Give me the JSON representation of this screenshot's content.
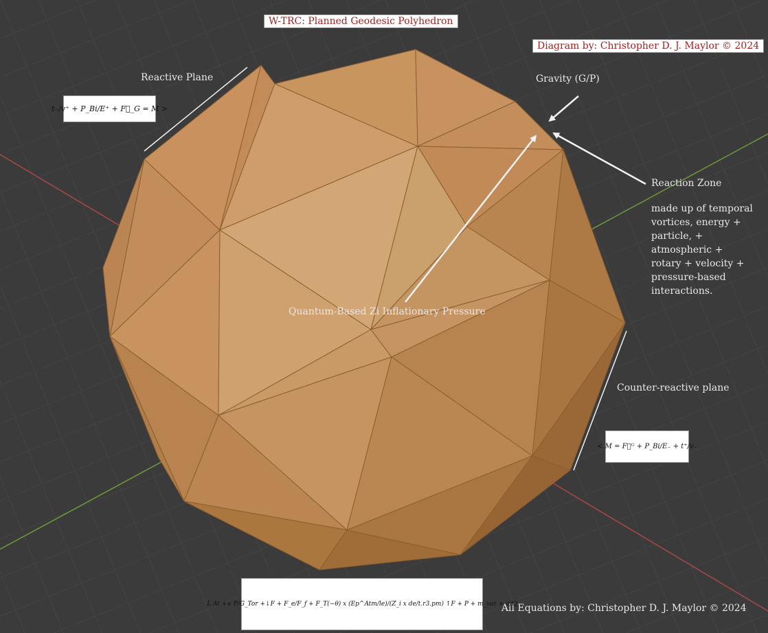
{
  "title": "W-TRC: Planned Geodesic Polyhedron",
  "diagram_credit": "Diagram by: Christopher D. J. Maylor © 2024",
  "equations_credit": "All Equations by: Christopher D. J. Maylor © 2024",
  "labels": {
    "reactive_plane": "Reactive Plane",
    "counter_reactive_plane": "Counter-reactive plane",
    "gravity": "Gravity (G/P)",
    "reaction_zone": "Reaction Zone",
    "reaction_zone_description": "made up of temporal vortices, energy + particle, + atmospheric  + rotary + velocity + pressure-based interactions.",
    "pressure": "Quantum-Based Zi Inflationary Pressure"
  },
  "equations": {
    "reactive": "t₋/v⁺ + P_Bi/E⁺ + F⃗_G = M >",
    "counter_reactive": "< M = F⃖ᴳ + P_Bi/E₋ + t⁺/v₋",
    "main": "L At +∨ P/G_Tor +↓F + F_e/F_f + F_T(−θ) x (Ep^Atm/le)/(Z_i x de/t.r3.pm) ↑F + P + m_var + σ/Q"
  },
  "colors": {
    "background": "#3b3b3b",
    "polyhedron": "#c99564",
    "polyhedron_edge": "#8a5e30",
    "title_text": "#9b2222",
    "arrow": "#f2f2f2",
    "axis_red": "#a94848",
    "axis_green": "#6f9a3a"
  }
}
